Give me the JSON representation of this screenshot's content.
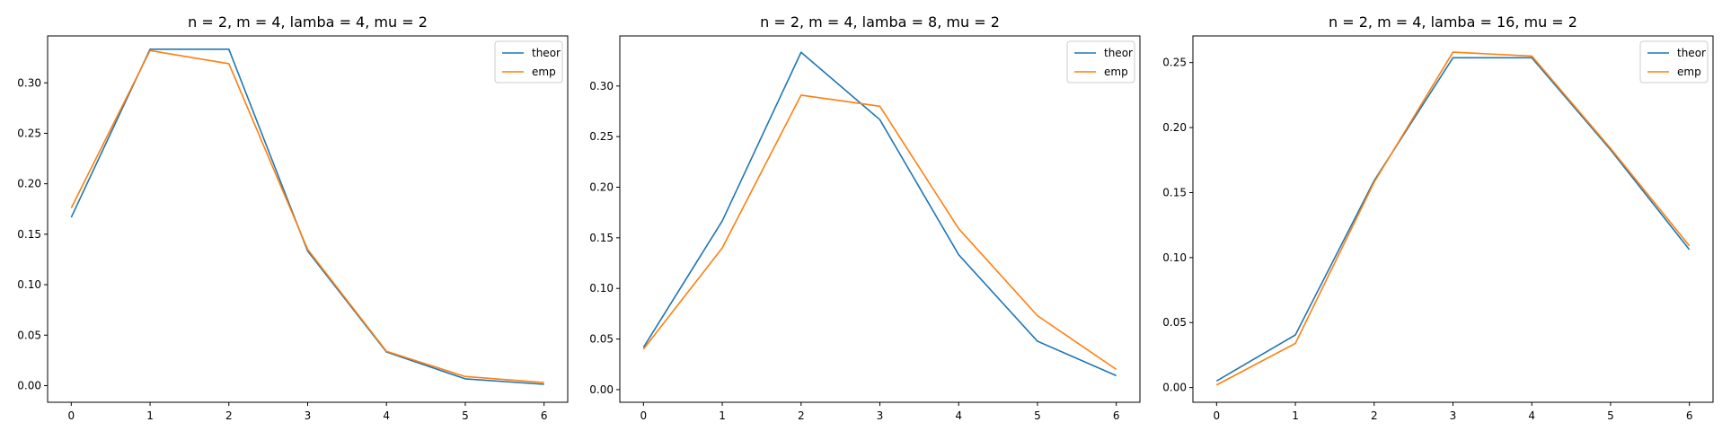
{
  "chart_data": [
    {
      "type": "line",
      "title": "n = 2, m = 4, lamba = 4, mu = 2",
      "xlabel": "",
      "ylabel": "",
      "x": [
        0,
        1,
        2,
        3,
        4,
        5,
        6
      ],
      "xlim": [
        -0.3,
        6.3
      ],
      "ylim": [
        -0.0165,
        0.3465
      ],
      "xticks": [
        0,
        1,
        2,
        3,
        4,
        5,
        6
      ],
      "yticks": [
        0.0,
        0.05,
        0.1,
        0.15,
        0.2,
        0.25,
        0.3
      ],
      "ytick_labels": [
        "0.00",
        "0.05",
        "0.10",
        "0.15",
        "0.20",
        "0.25",
        "0.30"
      ],
      "grid": false,
      "legend": "top-right",
      "series": [
        {
          "name": "theor",
          "color": "#1f77b4",
          "values": [
            0.1667,
            0.3333,
            0.3333,
            0.1333,
            0.0333,
            0.0067,
            0.0013
          ]
        },
        {
          "name": "emp",
          "color": "#ff7f0e",
          "values": [
            0.176,
            0.332,
            0.319,
            0.135,
            0.034,
            0.009,
            0.003
          ]
        }
      ]
    },
    {
      "type": "line",
      "title": "n = 2, m = 4, lamba = 8, mu = 2",
      "xlabel": "",
      "ylabel": "",
      "x": [
        0,
        1,
        2,
        3,
        4,
        5,
        6
      ],
      "xlim": [
        -0.3,
        6.3
      ],
      "ylim": [
        -0.0125,
        0.3495
      ],
      "xticks": [
        0,
        1,
        2,
        3,
        4,
        5,
        6
      ],
      "yticks": [
        0.0,
        0.05,
        0.1,
        0.15,
        0.2,
        0.25,
        0.3
      ],
      "ytick_labels": [
        "0.00",
        "0.05",
        "0.10",
        "0.15",
        "0.20",
        "0.25",
        "0.30"
      ],
      "grid": false,
      "legend": "top-right",
      "series": [
        {
          "name": "theor",
          "color": "#1f77b4",
          "values": [
            0.0417,
            0.1667,
            0.3333,
            0.2667,
            0.1333,
            0.0478,
            0.0138
          ]
        },
        {
          "name": "emp",
          "color": "#ff7f0e",
          "values": [
            0.04,
            0.14,
            0.291,
            0.28,
            0.159,
            0.073,
            0.02
          ]
        }
      ]
    },
    {
      "type": "line",
      "title": "n = 2, m = 4, lamba = 16, mu = 2",
      "xlabel": "",
      "ylabel": "",
      "x": [
        0,
        1,
        2,
        3,
        4,
        5,
        6
      ],
      "xlim": [
        -0.3,
        6.3
      ],
      "ylim": [
        -0.0113,
        0.2705
      ],
      "xticks": [
        0,
        1,
        2,
        3,
        4,
        5,
        6
      ],
      "yticks": [
        0.0,
        0.05,
        0.1,
        0.15,
        0.2,
        0.25
      ],
      "ytick_labels": [
        "0.00",
        "0.05",
        "0.10",
        "0.15",
        "0.20",
        "0.25"
      ],
      "grid": false,
      "legend": "top-right",
      "series": [
        {
          "name": "theor",
          "color": "#1f77b4",
          "values": [
            0.0051,
            0.0405,
            0.1592,
            0.2537,
            0.2537,
            0.1829,
            0.1061
          ]
        },
        {
          "name": "emp",
          "color": "#ff7f0e",
          "values": [
            0.002,
            0.034,
            0.158,
            0.258,
            0.255,
            0.184,
            0.109
          ]
        }
      ]
    }
  ]
}
